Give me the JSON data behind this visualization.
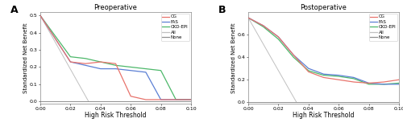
{
  "panel_A": {
    "title": "Preoperative",
    "xlabel": "High Risk Threshold",
    "ylabel": "Standardized Net Benefit",
    "xlim": [
      0.0,
      0.1
    ],
    "ylim": [
      -0.015,
      0.52
    ],
    "yticks": [
      0.0,
      0.1,
      0.2,
      0.3,
      0.4,
      0.5
    ],
    "xticks": [
      0.0,
      0.02,
      0.04,
      0.06,
      0.08,
      0.1
    ],
    "CG": {
      "x": [
        0.0,
        0.02,
        0.03,
        0.04,
        0.05,
        0.06,
        0.07,
        0.08,
        0.09,
        0.1
      ],
      "y": [
        0.5,
        0.23,
        0.22,
        0.23,
        0.22,
        0.03,
        0.01,
        0.01,
        0.01,
        0.01
      ],
      "color": "#e8736c",
      "lw": 0.9
    },
    "FAS": {
      "x": [
        0.0,
        0.02,
        0.03,
        0.04,
        0.05,
        0.06,
        0.07,
        0.08,
        0.09,
        0.1
      ],
      "y": [
        0.5,
        0.23,
        0.21,
        0.19,
        0.19,
        0.18,
        0.17,
        0.01,
        0.01,
        0.01
      ],
      "color": "#5b7fd4",
      "lw": 0.9
    },
    "CKD_EPI": {
      "x": [
        0.0,
        0.02,
        0.03,
        0.04,
        0.05,
        0.06,
        0.07,
        0.08,
        0.09,
        0.1
      ],
      "y": [
        0.5,
        0.26,
        0.25,
        0.23,
        0.21,
        0.2,
        0.19,
        0.18,
        0.01,
        0.01
      ],
      "color": "#4db86a",
      "lw": 0.9
    },
    "All": {
      "x": [
        0.0,
        0.032
      ],
      "y": [
        0.5,
        0.0
      ],
      "color": "#c0c0c0",
      "lw": 0.7,
      "linestyle": "-"
    },
    "None": {
      "x": [
        0.0,
        0.1
      ],
      "y": [
        0.0,
        0.0
      ],
      "color": "#909090",
      "lw": 0.7,
      "linestyle": "-"
    }
  },
  "panel_B": {
    "title": "Postoperative",
    "xlabel": "High Risk Threshold",
    "ylabel": "Standardized Net Benefit",
    "xlim": [
      0.0,
      0.1
    ],
    "ylim": [
      -0.015,
      0.8
    ],
    "yticks": [
      0.0,
      0.2,
      0.4,
      0.6
    ],
    "xticks": [
      0.0,
      0.02,
      0.04,
      0.06,
      0.08,
      0.1
    ],
    "CG": {
      "x": [
        0.0,
        0.01,
        0.02,
        0.03,
        0.04,
        0.05,
        0.06,
        0.07,
        0.08,
        0.09,
        0.1
      ],
      "y": [
        0.75,
        0.68,
        0.58,
        0.42,
        0.27,
        0.22,
        0.2,
        0.18,
        0.17,
        0.18,
        0.2
      ],
      "color": "#e8736c",
      "lw": 0.9
    },
    "FAS": {
      "x": [
        0.0,
        0.01,
        0.02,
        0.03,
        0.04,
        0.05,
        0.06,
        0.07,
        0.08,
        0.09,
        0.1
      ],
      "y": [
        0.75,
        0.68,
        0.58,
        0.42,
        0.3,
        0.25,
        0.24,
        0.22,
        0.17,
        0.16,
        0.16
      ],
      "color": "#5b7fd4",
      "lw": 0.9
    },
    "CKD_EPI": {
      "x": [
        0.0,
        0.01,
        0.02,
        0.03,
        0.04,
        0.05,
        0.06,
        0.07,
        0.08,
        0.09,
        0.1
      ],
      "y": [
        0.75,
        0.67,
        0.56,
        0.4,
        0.28,
        0.24,
        0.23,
        0.21,
        0.16,
        0.16,
        0.17
      ],
      "color": "#4db86a",
      "lw": 0.9
    },
    "All": {
      "x": [
        0.0,
        0.032
      ],
      "y": [
        0.75,
        0.0
      ],
      "color": "#c0c0c0",
      "lw": 0.7,
      "linestyle": "-"
    },
    "None": {
      "x": [
        0.0,
        0.1
      ],
      "y": [
        0.0,
        0.0
      ],
      "color": "#909090",
      "lw": 0.7,
      "linestyle": "-"
    }
  },
  "legend_labels": [
    "CG",
    "FAS",
    "CKD-EPI",
    "All",
    "None"
  ],
  "legend_colors": [
    "#e8736c",
    "#5b7fd4",
    "#4db86a",
    "#c0c0c0",
    "#909090"
  ],
  "legend_linestyles": [
    "-",
    "-",
    "-",
    "-",
    "-"
  ],
  "bg_color": "#ffffff",
  "panel_label_A": "A",
  "panel_label_B": "B"
}
